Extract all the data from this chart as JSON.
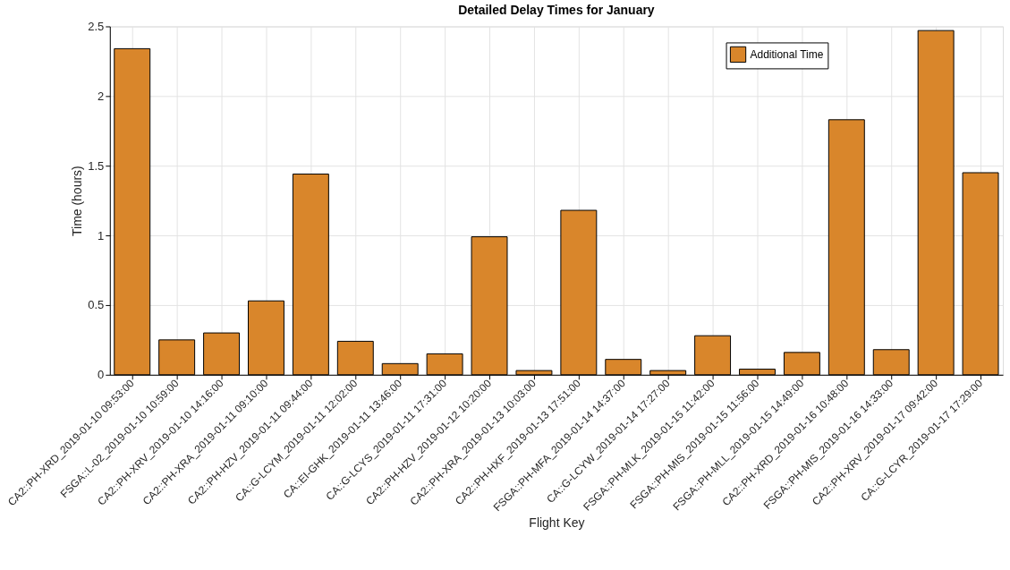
{
  "chart_data": {
    "type": "bar",
    "title": "Detailed Delay Times for January",
    "xlabel": "Flight Key",
    "ylabel": "Time (hours)",
    "categories": [
      "CA2::PH-XRD_2019-01-10 09:53:00",
      "FSGA::L-02_2019-01-10 10:59:00",
      "CA2::PH-XRV_2019-01-10 14:16:00",
      "CA2::PH-XRA_2019-01-11 09:10:00",
      "CA2::PH-HZV_2019-01-11 09:44:00",
      "CA::G-LCYM_2019-01-11 12:02:00",
      "CA::EI-GHK_2019-01-11 13:46:00",
      "CA::G-LCYS_2019-01-11 17:31:00",
      "CA2::PH-HZV_2019-01-12 10:20:00",
      "CA2::PH-XRA_2019-01-13 10:03:00",
      "CA2::PH-HXF_2019-01-13 17:51:00",
      "FSGA::PH-MFA_2019-01-14 14:37:00",
      "CA::G-LCYW_2019-01-14 17:27:00",
      "FSGA::PH-MLK_2019-01-15 11:42:00",
      "FSGA::PH-MIS_2019-01-15 11:56:00",
      "FSGA::PH-MLL_2019-01-15 14:49:00",
      "CA2::PH-XRD_2019-01-16 10:48:00",
      "FSGA::PH-MIS_2019-01-16 14:33:00",
      "CA2::PH-XRV_2019-01-17 09:42:00",
      "CA::G-LCYR_2019-01-17 17:29:00"
    ],
    "series": [
      {
        "name": "Additional Time",
        "color": "#d9862b",
        "values": [
          2.34,
          0.25,
          0.3,
          0.53,
          1.44,
          0.24,
          0.08,
          0.15,
          0.99,
          0.03,
          1.18,
          0.11,
          0.03,
          0.28,
          0.04,
          0.16,
          1.83,
          0.18,
          2.47,
          1.45
        ]
      }
    ],
    "ylim": [
      0,
      2.5
    ],
    "yticks": [
      0,
      0.5,
      1,
      1.5,
      2,
      2.5
    ],
    "grid": true,
    "legend": "top right"
  }
}
